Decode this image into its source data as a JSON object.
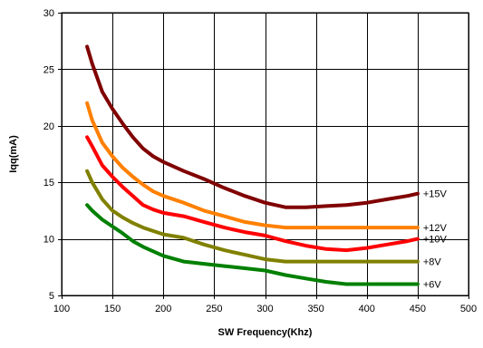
{
  "chart_data": {
    "type": "line",
    "title": "",
    "xlabel": "SW Frequency(Khz)",
    "ylabel": "Iqq(mA)",
    "xlim": [
      100,
      500
    ],
    "ylim": [
      5,
      30
    ],
    "xticks": [
      100,
      150,
      200,
      250,
      300,
      350,
      400,
      450,
      500
    ],
    "yticks": [
      5,
      10,
      15,
      20,
      25,
      30
    ],
    "grid": true,
    "legend": "inline labels at right end of each line",
    "series": [
      {
        "name": "+15V",
        "color": "#800000",
        "x": [
          125,
          130,
          140,
          150,
          160,
          170,
          180,
          190,
          200,
          220,
          240,
          260,
          280,
          300,
          320,
          340,
          360,
          380,
          400,
          420,
          440,
          450
        ],
        "y": [
          27.0,
          25.5,
          23.0,
          21.5,
          20.2,
          19.0,
          18.0,
          17.3,
          16.8,
          16.0,
          15.3,
          14.5,
          13.8,
          13.2,
          12.8,
          12.8,
          12.9,
          13.0,
          13.2,
          13.5,
          13.8,
          14.0
        ]
      },
      {
        "name": "+12V",
        "color": "#ff8000",
        "x": [
          125,
          130,
          140,
          150,
          160,
          170,
          180,
          190,
          200,
          220,
          240,
          260,
          280,
          300,
          320,
          340,
          360,
          380,
          400,
          420,
          440,
          450
        ],
        "y": [
          22.0,
          20.5,
          18.5,
          17.3,
          16.3,
          15.5,
          14.8,
          14.2,
          13.8,
          13.2,
          12.5,
          12.0,
          11.5,
          11.2,
          11.0,
          11.0,
          11.0,
          11.0,
          11.0,
          11.0,
          11.0,
          11.0
        ]
      },
      {
        "name": "+10V",
        "color": "#ff0000",
        "x": [
          125,
          130,
          140,
          150,
          160,
          170,
          180,
          190,
          200,
          220,
          240,
          260,
          280,
          300,
          320,
          340,
          360,
          380,
          400,
          420,
          440,
          450
        ],
        "y": [
          19.0,
          18.2,
          16.5,
          15.5,
          14.6,
          13.8,
          13.0,
          12.6,
          12.3,
          12.0,
          11.5,
          11.0,
          10.6,
          10.3,
          9.8,
          9.4,
          9.1,
          9.0,
          9.2,
          9.5,
          9.8,
          10.0
        ]
      },
      {
        "name": "+8V",
        "color": "#808000",
        "x": [
          125,
          130,
          140,
          150,
          160,
          170,
          180,
          190,
          200,
          220,
          240,
          260,
          280,
          300,
          320,
          340,
          360,
          380,
          400,
          420,
          440,
          450
        ],
        "y": [
          16.0,
          15.0,
          13.5,
          12.5,
          11.9,
          11.4,
          11.0,
          10.7,
          10.4,
          10.1,
          9.5,
          9.0,
          8.6,
          8.2,
          8.0,
          8.0,
          8.0,
          8.0,
          8.0,
          8.0,
          8.0,
          8.0
        ]
      },
      {
        "name": "+6V",
        "color": "#008000",
        "x": [
          125,
          130,
          140,
          150,
          160,
          170,
          180,
          190,
          200,
          220,
          240,
          260,
          280,
          300,
          320,
          340,
          360,
          380,
          400,
          420,
          440,
          450
        ],
        "y": [
          13.0,
          12.5,
          11.7,
          11.1,
          10.5,
          9.8,
          9.3,
          8.9,
          8.5,
          8.0,
          7.8,
          7.6,
          7.4,
          7.2,
          6.8,
          6.5,
          6.2,
          6.0,
          6.0,
          6.0,
          6.0,
          6.0
        ]
      }
    ]
  }
}
